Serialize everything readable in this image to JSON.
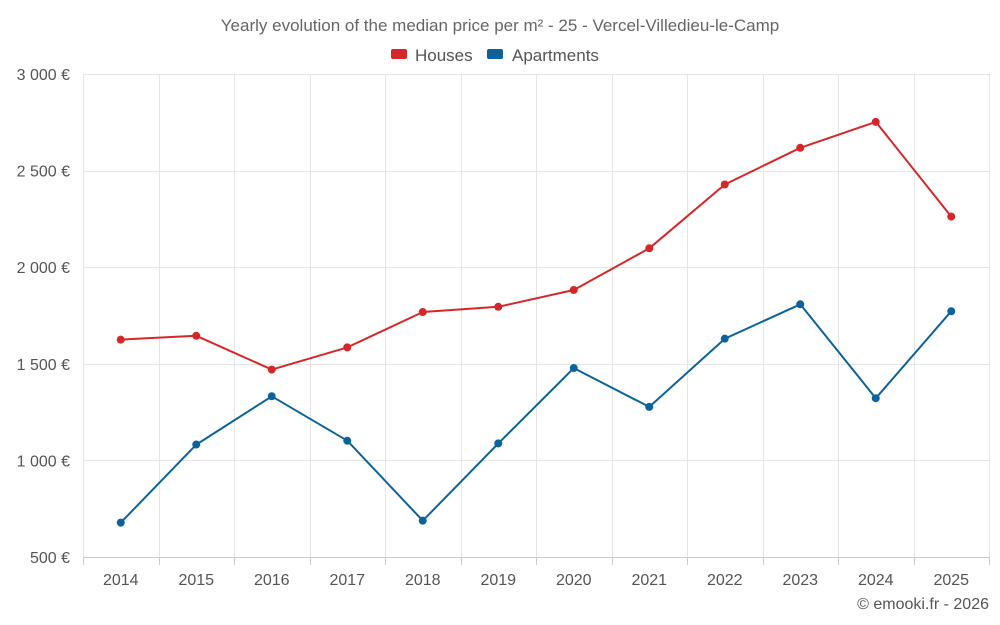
{
  "chart_data": {
    "type": "line",
    "title": "Yearly evolution of the median price per m² - 25 - Vercel-Villedieu-le-Camp",
    "categories": [
      "2014",
      "2015",
      "2016",
      "2017",
      "2018",
      "2019",
      "2020",
      "2021",
      "2022",
      "2023",
      "2024",
      "2025"
    ],
    "series": [
      {
        "name": "Houses",
        "color": "#d62728",
        "values": [
          1625,
          1645,
          1470,
          1585,
          1768,
          1795,
          1882,
          2098,
          2428,
          2618,
          2752,
          2262
        ]
      },
      {
        "name": "Apartments",
        "color": "#0b6399",
        "values": [
          678,
          1082,
          1332,
          1102,
          688,
          1088,
          1478,
          1277,
          1630,
          1808,
          1322,
          1772
        ]
      }
    ],
    "ylim": [
      500,
      3000
    ],
    "yticks": [
      500,
      1000,
      1500,
      2000,
      2500,
      3000
    ],
    "ytick_labels": [
      "500 €",
      "1 000 €",
      "1 500 €",
      "2 000 €",
      "2 500 €",
      "3 000 €"
    ],
    "grid": true,
    "legend_position": "top-center",
    "credit": "© emooki.fr - 2026"
  }
}
